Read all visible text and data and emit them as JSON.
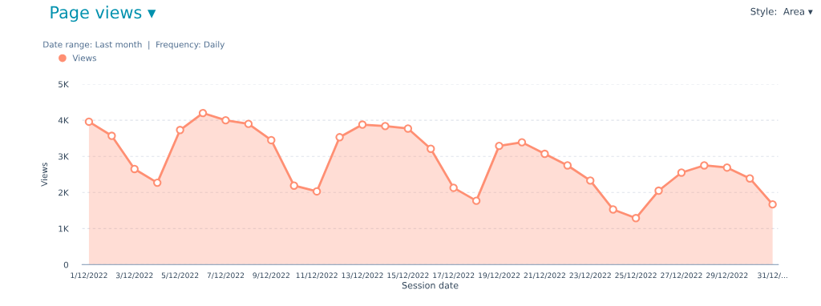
{
  "chart_data": {
    "type": "area",
    "title": "Page views ▾",
    "subtitle": "Date range: Last month  |  Frequency: Daily",
    "annotations": [
      "Style:  Area ▾"
    ],
    "xlabel": "Session date",
    "ylabel": "Views",
    "categories": [
      "1/12/2022",
      null,
      "3/12/2022",
      null,
      "5/12/2022",
      null,
      "7/12/2022",
      null,
      "9/12/2022",
      null,
      "11/12/2022",
      null,
      "13/12/2022",
      null,
      "15/12/2022",
      null,
      "17/12/2022",
      null,
      "19/12/2022",
      null,
      "21/12/2022",
      null,
      "23/12/2022",
      null,
      "25/12/2022",
      null,
      "27/12/2022",
      null,
      "29/12/2022",
      null,
      "31/12/..."
    ],
    "series": [
      {
        "name": "Views",
        "color": "#ff8f73",
        "values": [
          3960,
          3570,
          2650,
          2270,
          3730,
          4200,
          4000,
          3900,
          3450,
          2190,
          2030,
          3530,
          3880,
          3840,
          3770,
          3210,
          2130,
          1770,
          3290,
          3390,
          3070,
          2750,
          2330,
          1530,
          1290,
          2050,
          2550,
          2750,
          2690,
          2390,
          1670
        ]
      }
    ],
    "ylim": [
      0,
      5000
    ],
    "yticks": [
      0,
      {
        "value": 1000,
        "label": "1K"
      },
      {
        "value": 2000,
        "label": "2K"
      },
      {
        "value": 3000,
        "label": "3K"
      },
      {
        "value": 4000,
        "label": "4K"
      },
      {
        "value": 5000,
        "label": "5K"
      }
    ],
    "grid": "y",
    "legend": "top left",
    "marker": "circle"
  }
}
